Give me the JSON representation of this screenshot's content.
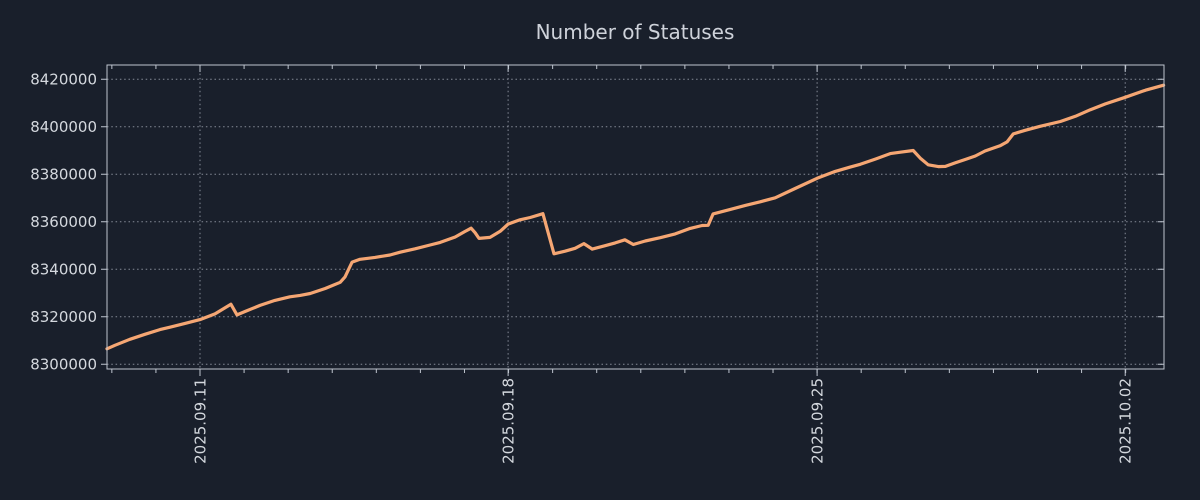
{
  "chart_data": {
    "type": "line",
    "title": "Number of Statuses",
    "xlabel": "",
    "ylabel": "",
    "legend": "none",
    "grid": true,
    "xlim": [
      0,
      23.98
    ],
    "ylim": [
      8298000,
      8426000
    ],
    "x_window_note": "x axis in days across visible window, weekly labeled ticks, daily minor ticks",
    "x_ticks_major": [
      {
        "day": 2.11,
        "label": "2025.09.11"
      },
      {
        "day": 9.1,
        "label": "2025.09.18"
      },
      {
        "day": 16.11,
        "label": "2025.09.25"
      },
      {
        "day": 23.1,
        "label": "2025.10.02"
      }
    ],
    "x_minor_tick_step_days": 1,
    "y_ticks": [
      8300000,
      8320000,
      8340000,
      8360000,
      8380000,
      8400000,
      8420000
    ],
    "colors": {
      "background": "#191f2b",
      "line": "#f5a673",
      "grid": "#aab0bc",
      "axis": "#bfc5cf",
      "text": "#d4d8de",
      "title": "#ced2da"
    },
    "series": [
      {
        "name": "statuses",
        "points": [
          [
            0.0,
            8306500
          ],
          [
            0.18,
            8308000
          ],
          [
            0.52,
            8310500
          ],
          [
            0.86,
            8312600
          ],
          [
            1.2,
            8314600
          ],
          [
            1.43,
            8315600
          ],
          [
            1.77,
            8317200
          ],
          [
            2.11,
            8318800
          ],
          [
            2.45,
            8321200
          ],
          [
            2.68,
            8323800
          ],
          [
            2.81,
            8325300
          ],
          [
            2.95,
            8320800
          ],
          [
            3.13,
            8322200
          ],
          [
            3.47,
            8324800
          ],
          [
            3.81,
            8326900
          ],
          [
            4.15,
            8328400
          ],
          [
            4.38,
            8329000
          ],
          [
            4.61,
            8329800
          ],
          [
            4.95,
            8331900
          ],
          [
            5.29,
            8334500
          ],
          [
            5.4,
            8336800
          ],
          [
            5.47,
            8339500
          ],
          [
            5.56,
            8343000
          ],
          [
            5.74,
            8344200
          ],
          [
            6.08,
            8345000
          ],
          [
            6.42,
            8346000
          ],
          [
            6.65,
            8347200
          ],
          [
            6.99,
            8348600
          ],
          [
            7.33,
            8350200
          ],
          [
            7.56,
            8351300
          ],
          [
            7.9,
            8353600
          ],
          [
            8.12,
            8355900
          ],
          [
            8.26,
            8357300
          ],
          [
            8.35,
            8355400
          ],
          [
            8.44,
            8353000
          ],
          [
            8.69,
            8353400
          ],
          [
            8.92,
            8356000
          ],
          [
            9.1,
            8359000
          ],
          [
            9.37,
            8360800
          ],
          [
            9.6,
            8361800
          ],
          [
            9.89,
            8363400
          ],
          [
            10.14,
            8346500
          ],
          [
            10.39,
            8347600
          ],
          [
            10.62,
            8348800
          ],
          [
            10.82,
            8350800
          ],
          [
            11.01,
            8348500
          ],
          [
            11.3,
            8349900
          ],
          [
            11.53,
            8351100
          ],
          [
            11.75,
            8352400
          ],
          [
            11.94,
            8350400
          ],
          [
            12.21,
            8351900
          ],
          [
            12.55,
            8353300
          ],
          [
            12.89,
            8354900
          ],
          [
            13.23,
            8357200
          ],
          [
            13.5,
            8358400
          ],
          [
            13.64,
            8358500
          ],
          [
            13.75,
            8363300
          ],
          [
            14.14,
            8365200
          ],
          [
            14.48,
            8366900
          ],
          [
            14.82,
            8368400
          ],
          [
            15.16,
            8370100
          ],
          [
            15.61,
            8374000
          ],
          [
            16.11,
            8378300
          ],
          [
            16.52,
            8381200
          ],
          [
            16.86,
            8383000
          ],
          [
            17.09,
            8384200
          ],
          [
            17.43,
            8386400
          ],
          [
            17.77,
            8388700
          ],
          [
            18.0,
            8389300
          ],
          [
            18.29,
            8390000
          ],
          [
            18.45,
            8386800
          ],
          [
            18.63,
            8384000
          ],
          [
            18.86,
            8383200
          ],
          [
            19.02,
            8383300
          ],
          [
            19.24,
            8384800
          ],
          [
            19.47,
            8386200
          ],
          [
            19.7,
            8387700
          ],
          [
            19.92,
            8389800
          ],
          [
            20.26,
            8392000
          ],
          [
            20.42,
            8393600
          ],
          [
            20.56,
            8397000
          ],
          [
            20.83,
            8398500
          ],
          [
            21.17,
            8400200
          ],
          [
            21.63,
            8402200
          ],
          [
            21.97,
            8404400
          ],
          [
            22.31,
            8407200
          ],
          [
            22.65,
            8409600
          ],
          [
            23.1,
            8412400
          ],
          [
            23.56,
            8415400
          ],
          [
            23.97,
            8417500
          ]
        ]
      }
    ]
  }
}
